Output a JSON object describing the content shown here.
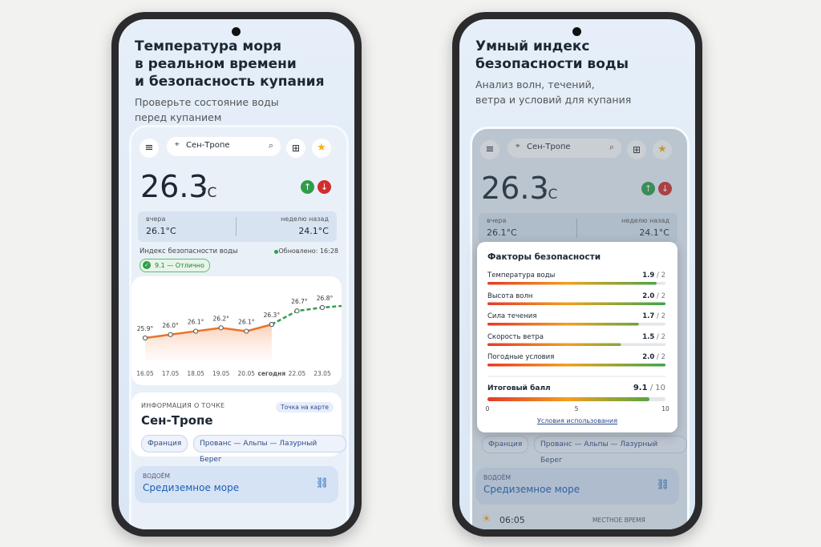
{
  "phones": [
    {
      "headline": [
        "Температура моря",
        "в реальном времени",
        "и безопасность купания"
      ],
      "subtitle": [
        "Проверьте состояние воды",
        "перед купанием"
      ],
      "app": {
        "search": "Сен-Тропе",
        "temperature": "26.3",
        "unit": "°C",
        "yesterday_label": "вчера",
        "yesterday": "26.1°C",
        "week_label": "неделю назад",
        "week": "24.1°C",
        "safety_label": "Индекс безопасности воды",
        "updated": "Обновлено: 16:28",
        "badge": "9.1 — Отлично",
        "chart": {
          "type": "line",
          "categories": [
            "16.05",
            "17.05",
            "18.05",
            "19.05",
            "20.05",
            "сегодня",
            "22.05",
            "23.05"
          ],
          "series": [
            {
              "name": "actual",
              "color": "#e8742a",
              "values": [
                25.9,
                26.0,
                26.1,
                26.2,
                26.1,
                26.3,
                null,
                null
              ],
              "value_labels": [
                "25.9°",
                "26.0°",
                "26.1°",
                "26.2°",
                "26.1°",
                "26.3°",
                null,
                null
              ]
            },
            {
              "name": "forecast",
              "color": "#2e9d4a",
              "values": [
                null,
                null,
                null,
                null,
                null,
                26.3,
                26.7,
                26.8
              ],
              "value_labels": [
                null,
                null,
                null,
                null,
                null,
                null,
                "26.7°",
                "26.8°"
              ]
            }
          ]
        },
        "info_label": "ИНФОРМАЦИЯ О ТОЧКЕ",
        "map_button": "Точка на карте",
        "place": "Сен-Тропе",
        "country": "Франция",
        "region": "Прованс — Альпы — Лазурный Берег",
        "water_label": "ВОДОЁМ",
        "water": "Средиземное море"
      }
    },
    {
      "headline": [
        "Умный индекс",
        "безопасности воды"
      ],
      "subtitle": [
        "Анализ волн, течений,",
        "ветра и условий для купания"
      ],
      "app": {
        "search": "Сен-Тропе",
        "temperature": "26.3",
        "unit": "°C",
        "yesterday_label": "вчера",
        "yesterday": "26.1°C",
        "week_label": "неделю назад",
        "week": "24.1°C",
        "country": "Франция",
        "region": "Прованс — Альпы — Лазурный Берег",
        "water_label": "ВОДОЁМ",
        "water": "Средиземное море",
        "time": "06:05",
        "time_label": "МЕСТНОЕ ВРЕМЯ"
      },
      "panel": {
        "title": "Факторы безопасности",
        "separator": "/",
        "factors": [
          {
            "name": "Температура воды",
            "score": {
              "value": 1.9,
              "label": "1.9"
            },
            "max": 2
          },
          {
            "name": "Высота волн",
            "score": {
              "value": 2,
              "label": "2.0"
            },
            "max": 2
          },
          {
            "name": "Сила течения",
            "score": {
              "value": 1.7,
              "label": "1.7"
            },
            "max": 2
          },
          {
            "name": "Скорость ветра",
            "score": {
              "value": 1.5,
              "label": "1.5"
            },
            "max": 2
          },
          {
            "name": "Погодные условия",
            "score": {
              "value": 2,
              "label": "2.0"
            },
            "max": 2
          }
        ],
        "total_label": "Итоговый балл",
        "total": 9.1,
        "total_max": 10,
        "scale_ticks": [
          0,
          5,
          10
        ],
        "terms": "Условия использования"
      }
    }
  ]
}
